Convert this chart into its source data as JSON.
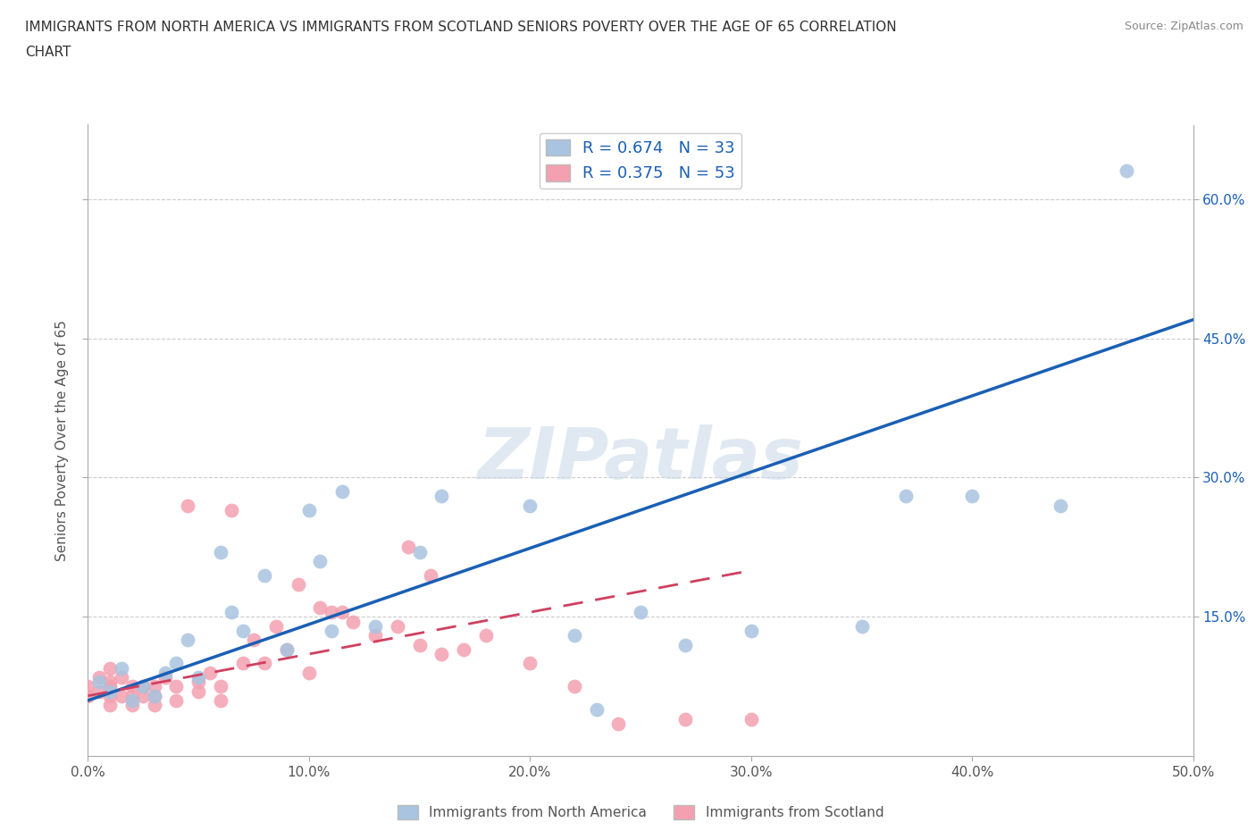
{
  "title_line1": "IMMIGRANTS FROM NORTH AMERICA VS IMMIGRANTS FROM SCOTLAND SENIORS POVERTY OVER THE AGE OF 65 CORRELATION",
  "title_line2": "CHART",
  "source": "Source: ZipAtlas.com",
  "ylabel": "Seniors Poverty Over the Age of 65",
  "xlim": [
    0.0,
    0.5
  ],
  "ylim": [
    0.0,
    0.68
  ],
  "yticks": [
    0.15,
    0.3,
    0.45,
    0.6
  ],
  "xticks": [
    0.0,
    0.1,
    0.2,
    0.3,
    0.4,
    0.5
  ],
  "xtick_labels": [
    "0.0%",
    "10.0%",
    "20.0%",
    "30.0%",
    "40.0%",
    "50.0%"
  ],
  "ytick_labels_right": [
    "15.0%",
    "30.0%",
    "45.0%",
    "60.0%"
  ],
  "R_blue": 0.674,
  "N_blue": 33,
  "R_pink": 0.375,
  "N_pink": 53,
  "blue_color": "#a8c4e0",
  "pink_color": "#f4a0b0",
  "blue_line_color": "#1a5fb4",
  "pink_line_color": "#d04060",
  "watermark": "ZIPatlas",
  "blue_scatter_x": [
    0.005,
    0.01,
    0.015,
    0.02,
    0.025,
    0.03,
    0.035,
    0.04,
    0.045,
    0.05,
    0.06,
    0.065,
    0.07,
    0.08,
    0.09,
    0.1,
    0.105,
    0.11,
    0.115,
    0.13,
    0.15,
    0.16,
    0.2,
    0.22,
    0.23,
    0.25,
    0.27,
    0.3,
    0.35,
    0.37,
    0.4,
    0.44,
    0.47
  ],
  "blue_scatter_y": [
    0.08,
    0.07,
    0.095,
    0.06,
    0.075,
    0.065,
    0.09,
    0.1,
    0.125,
    0.085,
    0.22,
    0.155,
    0.135,
    0.195,
    0.115,
    0.265,
    0.21,
    0.135,
    0.285,
    0.14,
    0.22,
    0.28,
    0.27,
    0.13,
    0.05,
    0.155,
    0.12,
    0.135,
    0.14,
    0.28,
    0.28,
    0.27,
    0.63
  ],
  "pink_scatter_x": [
    0.0,
    0.0,
    0.005,
    0.005,
    0.01,
    0.01,
    0.01,
    0.01,
    0.01,
    0.015,
    0.015,
    0.02,
    0.02,
    0.02,
    0.025,
    0.025,
    0.03,
    0.03,
    0.03,
    0.035,
    0.04,
    0.04,
    0.045,
    0.05,
    0.05,
    0.055,
    0.06,
    0.06,
    0.065,
    0.07,
    0.075,
    0.08,
    0.085,
    0.09,
    0.095,
    0.1,
    0.105,
    0.11,
    0.115,
    0.12,
    0.13,
    0.14,
    0.145,
    0.15,
    0.155,
    0.16,
    0.17,
    0.18,
    0.2,
    0.22,
    0.24,
    0.27,
    0.3
  ],
  "pink_scatter_y": [
    0.065,
    0.075,
    0.07,
    0.085,
    0.055,
    0.065,
    0.075,
    0.08,
    0.095,
    0.065,
    0.085,
    0.055,
    0.065,
    0.075,
    0.065,
    0.075,
    0.055,
    0.065,
    0.075,
    0.085,
    0.06,
    0.075,
    0.27,
    0.07,
    0.08,
    0.09,
    0.06,
    0.075,
    0.265,
    0.1,
    0.125,
    0.1,
    0.14,
    0.115,
    0.185,
    0.09,
    0.16,
    0.155,
    0.155,
    0.145,
    0.13,
    0.14,
    0.225,
    0.12,
    0.195,
    0.11,
    0.115,
    0.13,
    0.1,
    0.075,
    0.035,
    0.04,
    0.04
  ],
  "blue_line_x0": 0.0,
  "blue_line_y0": 0.06,
  "blue_line_x1": 0.5,
  "blue_line_y1": 0.47,
  "pink_line_x0": 0.0,
  "pink_line_y0": 0.065,
  "pink_line_x1": 0.3,
  "pink_line_y1": 0.2
}
